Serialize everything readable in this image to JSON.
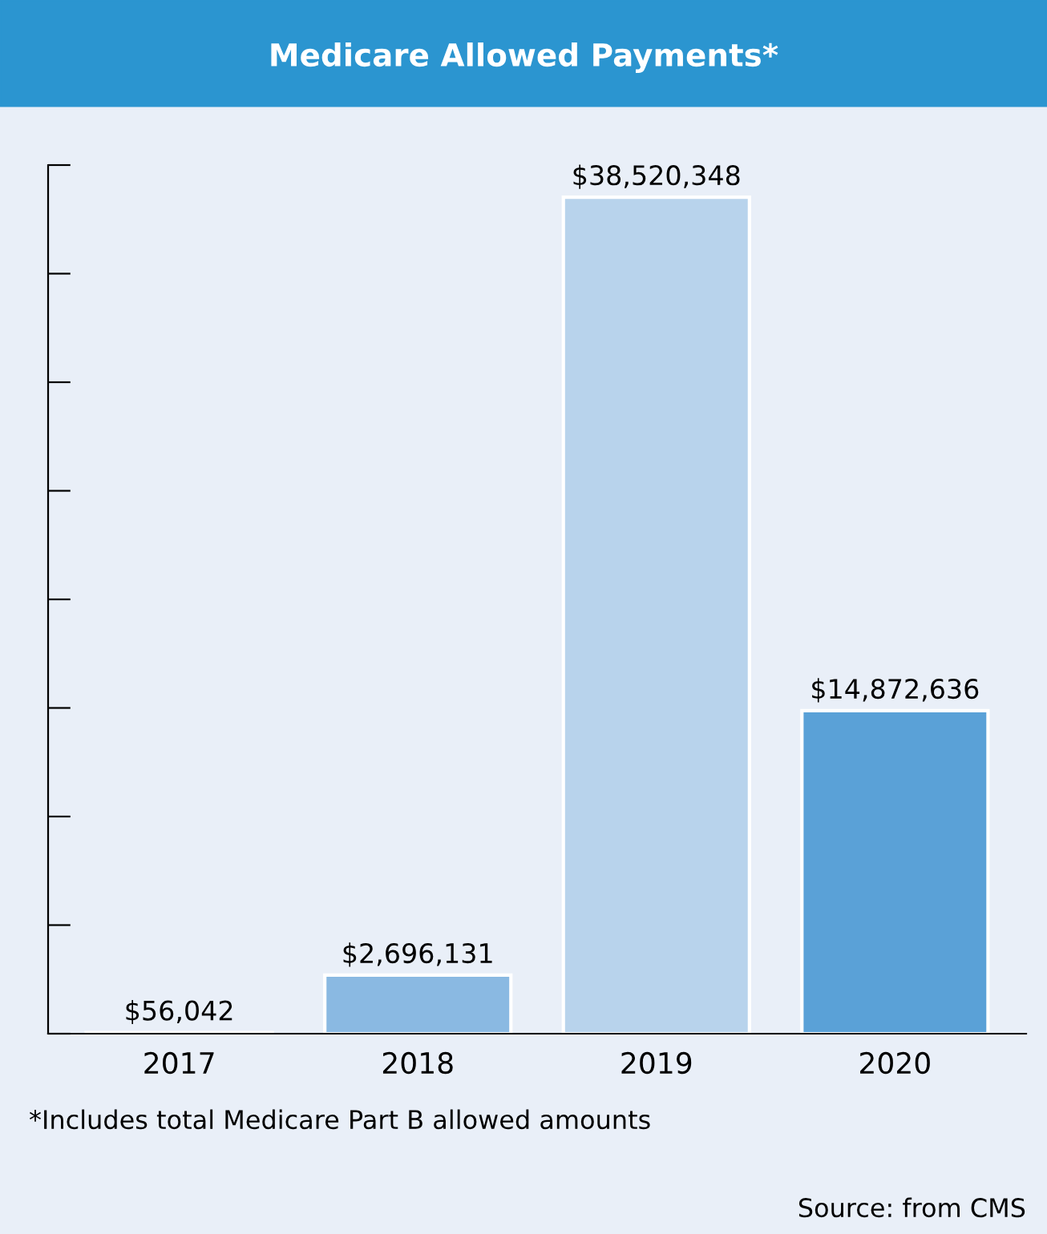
{
  "chart_data": {
    "type": "bar",
    "title": "Medicare Allowed Payments*",
    "categories": [
      "2017",
      "2018",
      "2019",
      "2020"
    ],
    "values": [
      56042,
      2696131,
      38520348,
      14872636
    ],
    "colors": [
      "#4f9fd8",
      "#8ab9e2",
      "#b8d3ec",
      "#5aa1d7"
    ],
    "value_labels": [
      "$56,042",
      "$2,696,131",
      "$38,520,348",
      "$14,872,636"
    ],
    "ylim": [
      0,
      40000000
    ],
    "yticks": [
      {
        "value": 0,
        "label": null
      },
      {
        "value": 5000000,
        "label": null
      },
      {
        "value": 10000000,
        "label": null
      },
      {
        "value": 15000000,
        "label": null
      },
      {
        "value": 20000000,
        "label": null
      },
      {
        "value": 25000000,
        "label": null
      },
      {
        "value": 30000000,
        "label": null
      },
      {
        "value": 35000000,
        "label": null
      },
      {
        "value": 40000000,
        "label": null
      }
    ],
    "grid": false,
    "legend": false,
    "annotations": [
      "*Includes total Medicare Part B allowed amounts",
      "Source: from CMS"
    ]
  }
}
